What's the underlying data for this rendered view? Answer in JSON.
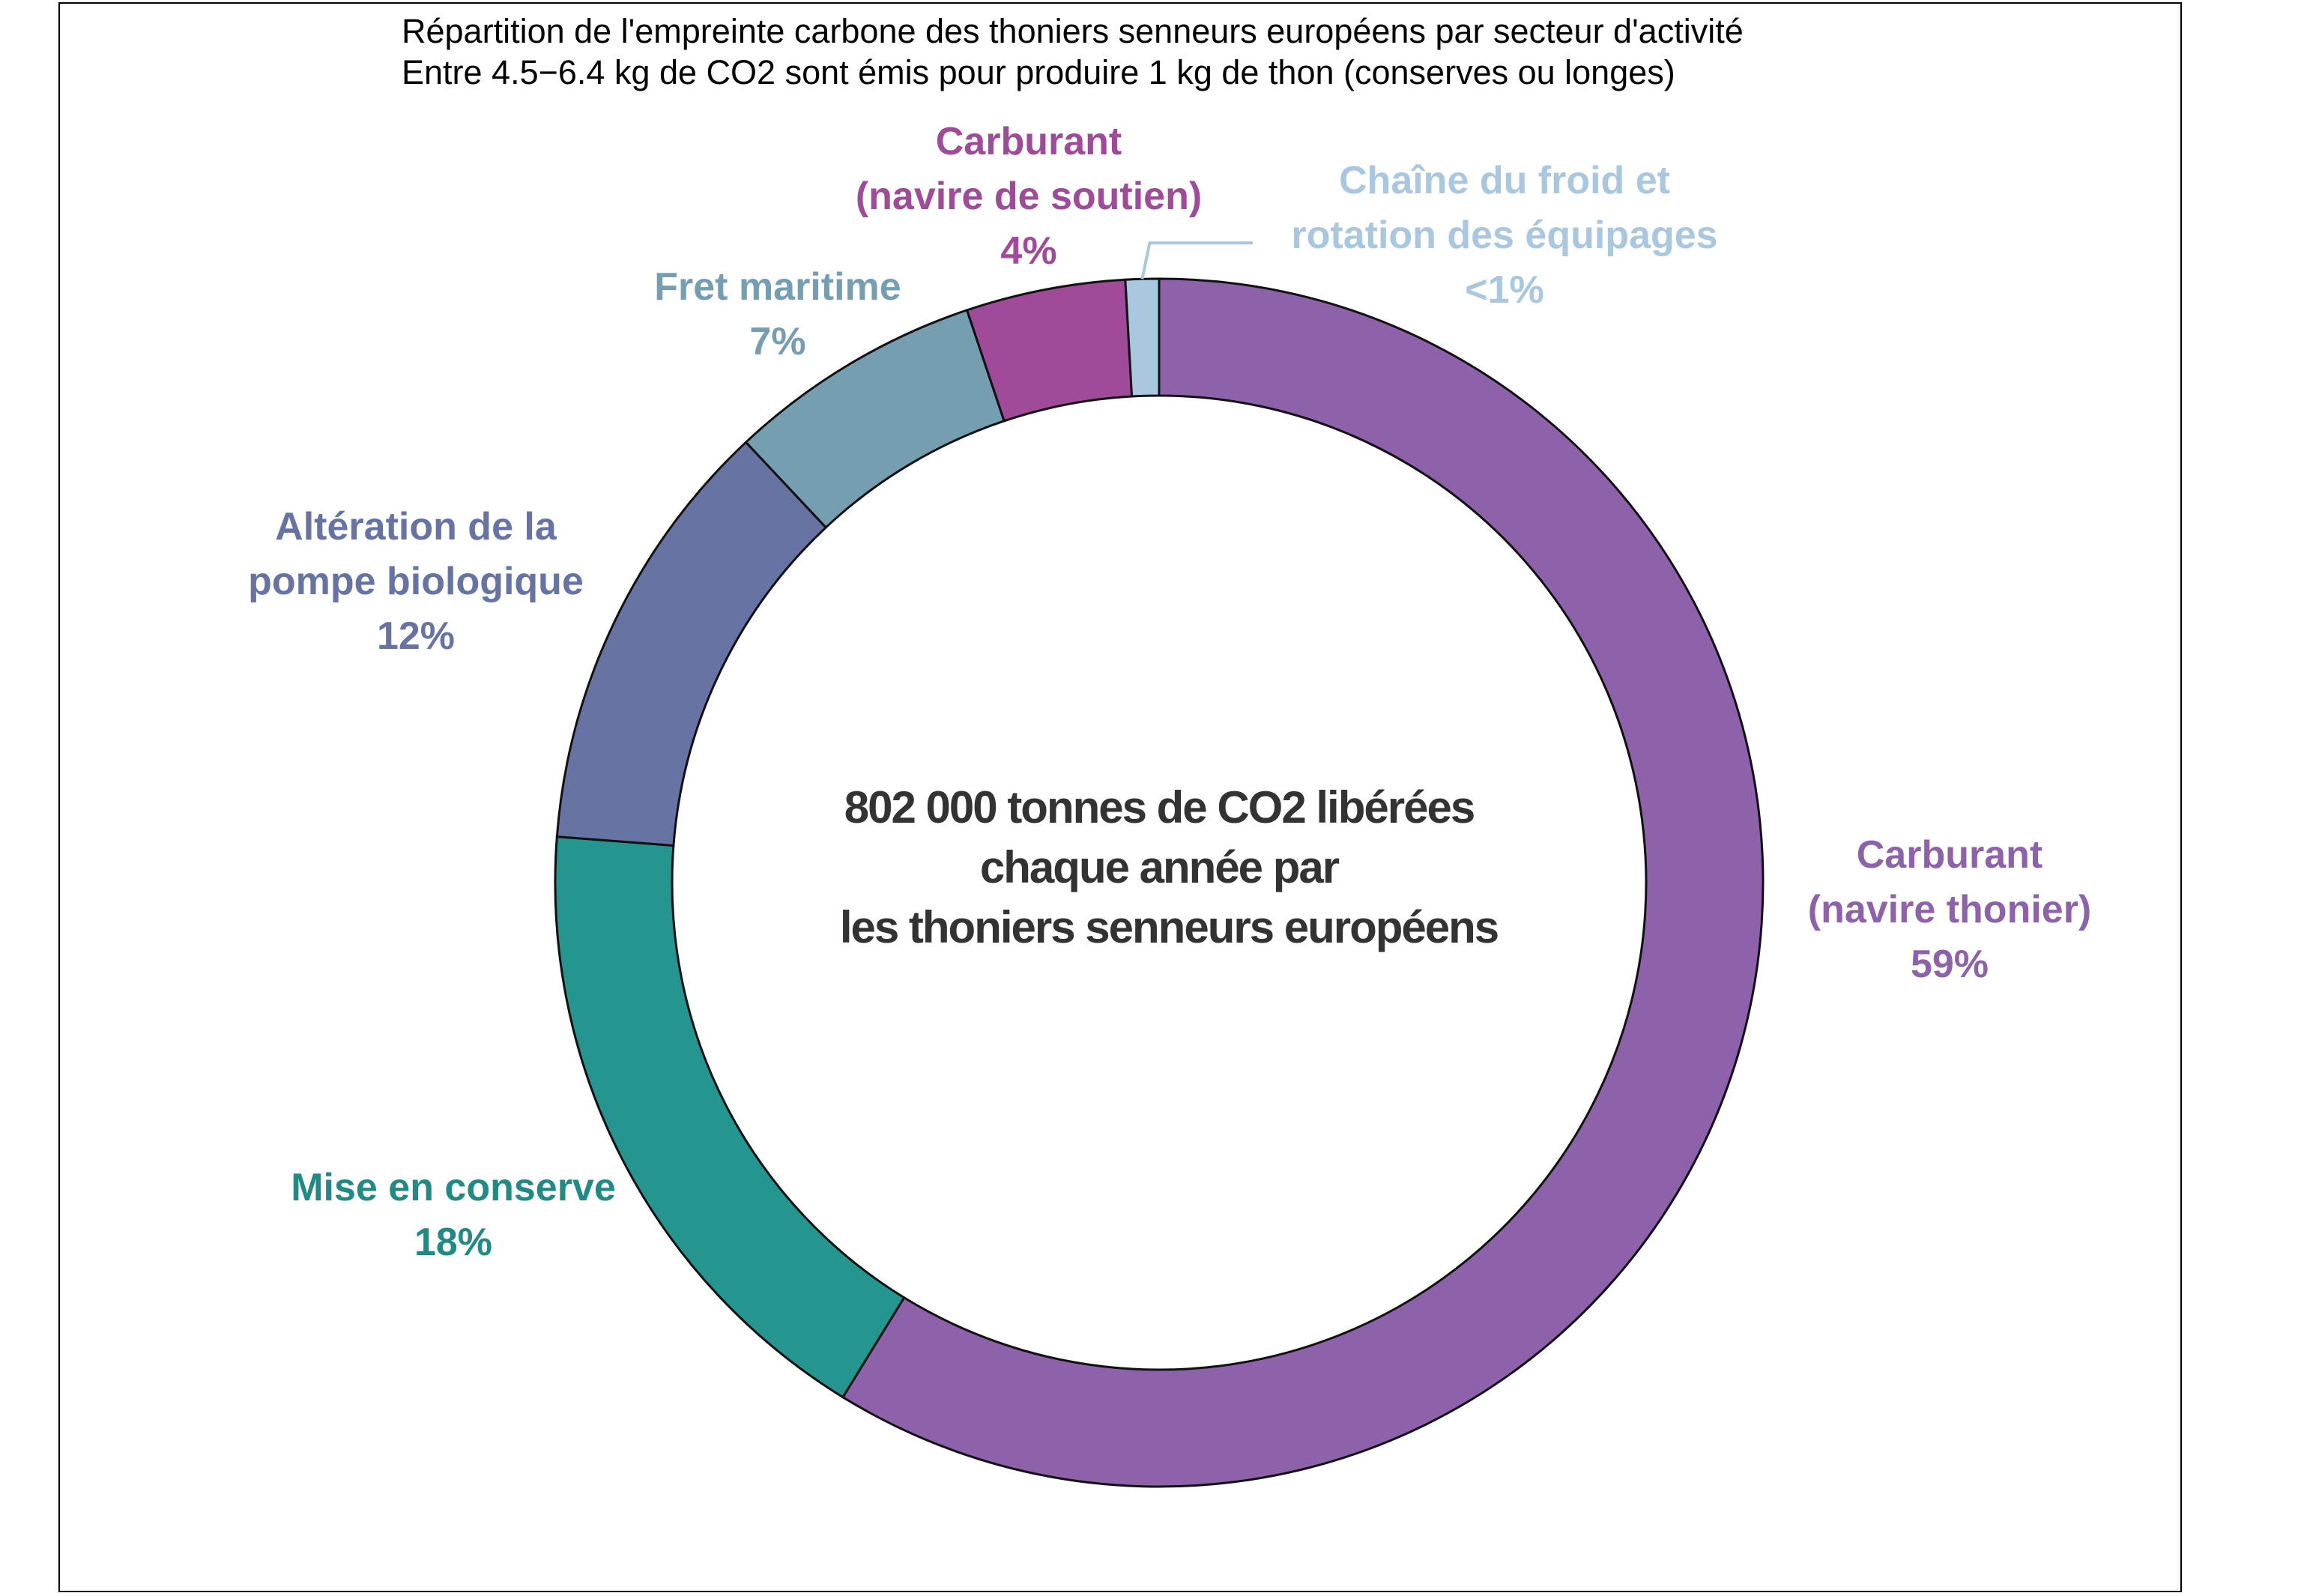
{
  "chart_data": {
    "type": "pie",
    "donut": true,
    "title": "Répartition de l'empreinte carbone des thoniers senneurs européens par secteur d'activité",
    "subtitle": "Entre 4.5−6.4 kg de CO2 sont émis pour produire 1 kg de thon (conserves ou longes)",
    "center_text": [
      "802 000 tonnes de CO2 libérées",
      "chaque année par",
      "les thoniers senneurs européens"
    ],
    "direction": "clockwise",
    "start": "top",
    "slices": [
      {
        "label_lines": [
          "Carburant",
          "(navire thonier)"
        ],
        "percent_label": "59%",
        "value": 59.3,
        "color": "#8e62ab",
        "label_color": "#8e62ab"
      },
      {
        "label_lines": [
          "Mise en conserve"
        ],
        "percent_label": "18%",
        "value": 17.6,
        "color": "#259590",
        "label_color": "#1f8b84"
      },
      {
        "label_lines": [
          "Altération de la",
          "pompe biologique"
        ],
        "percent_label": "12%",
        "value": 11.9,
        "color": "#6774a3",
        "label_color": "#6774a3"
      },
      {
        "label_lines": [
          "Fret maritime"
        ],
        "percent_label": "7%",
        "value": 6.9,
        "color": "#759fb1",
        "label_color": "#759fb1"
      },
      {
        "label_lines": [
          "Carburant",
          "(navire de soutien)"
        ],
        "percent_label": "4%",
        "value": 4.3,
        "color": "#a04b9a",
        "label_color": "#a04b9a"
      },
      {
        "label_lines": [
          "Chaîne du froid et",
          "rotation des équipages"
        ],
        "percent_label": "<1%",
        "value": 0.9,
        "color": "#a9c7df",
        "label_color": "#a9c7df"
      }
    ]
  }
}
